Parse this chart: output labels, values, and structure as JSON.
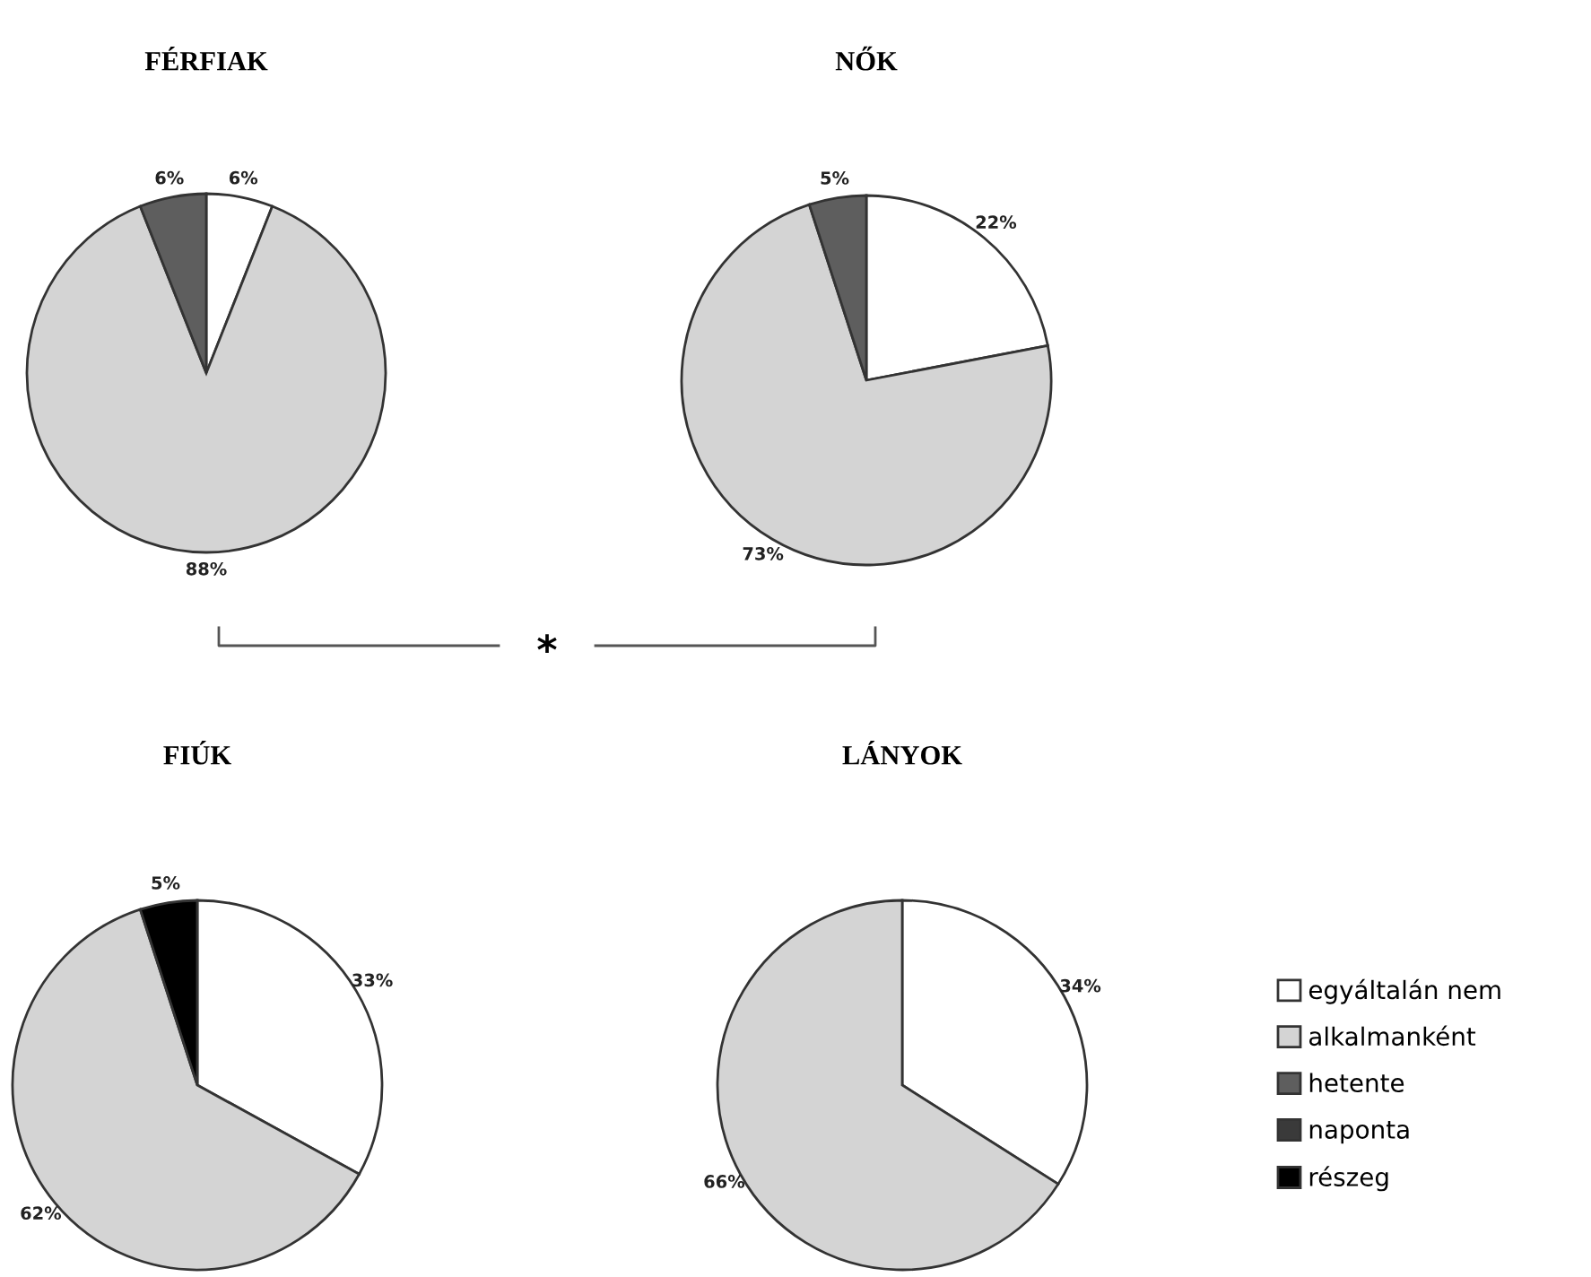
{
  "chart_data": [
    {
      "type": "pie",
      "title": "FÉRFIAK",
      "categories": [
        "egyáltalán nem",
        "alkalmanként",
        "hetente",
        "naponta",
        "részeg"
      ],
      "values": [
        6,
        88,
        6,
        null,
        null
      ],
      "value_labels": [
        "6%",
        "88%",
        "6%",
        null,
        null
      ],
      "colors": [
        "#ffffff",
        "#d4d4d4",
        "#5e5e5e",
        "#3a3a3a",
        "#000000"
      ],
      "annotations": [
        "*"
      ],
      "legend": "right"
    },
    {
      "type": "pie",
      "title": "NŐK",
      "categories": [
        null,
        null,
        null,
        null,
        null
      ],
      "values": [
        22,
        73,
        5,
        null,
        null
      ],
      "value_labels": [
        "22%",
        "73%",
        "5%",
        null,
        null
      ],
      "colors": [
        "#ffffff",
        "#d4d4d4",
        "#5e5e5e",
        "#3a3a3a",
        "#000000"
      ]
    },
    {
      "type": "pie",
      "title": "FIÚK",
      "categories": [
        null,
        null,
        null,
        null,
        null
      ],
      "values": [
        33,
        62,
        null,
        null,
        5
      ],
      "value_labels": [
        "33%",
        "62%",
        null,
        null,
        "5%"
      ],
      "colors": [
        "#ffffff",
        "#d4d4d4",
        "#5e5e5e",
        "#3a3a3a",
        "#000000"
      ]
    },
    {
      "type": "pie",
      "title": "LÁNYOK",
      "categories": [
        null,
        null,
        null,
        null,
        null
      ],
      "values": [
        34,
        66,
        null,
        null,
        null
      ],
      "value_labels": [
        "34%",
        "66%",
        null,
        null,
        null
      ],
      "colors": [
        "#ffffff",
        "#d4d4d4",
        "#5e5e5e",
        "#3a3a3a",
        "#000000"
      ]
    }
  ]
}
